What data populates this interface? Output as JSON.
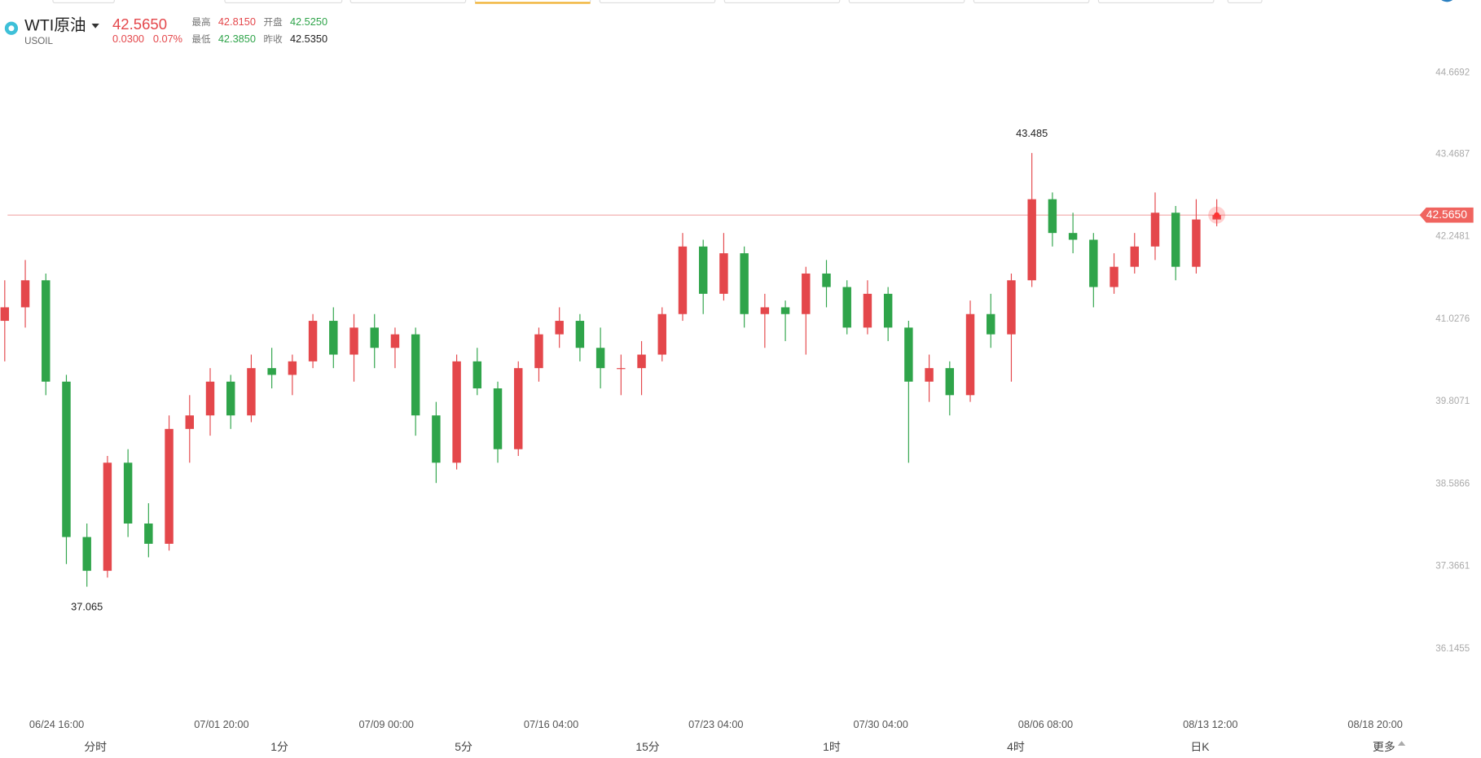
{
  "header": {
    "name": "WTI原油",
    "symbol": "USOIL",
    "price": "42.5650",
    "change": "0.0300",
    "change_pct": "0.07%",
    "stats": [
      {
        "label": "最高",
        "value": "42.8150",
        "tone": "up"
      },
      {
        "label": "开盘",
        "value": "42.5250",
        "tone": "down"
      },
      {
        "label": "最低",
        "value": "42.3850",
        "tone": "down"
      },
      {
        "label": "昨收",
        "value": "42.5350",
        "tone": "flat"
      }
    ]
  },
  "tabs": [
    "分时",
    "1分",
    "5分",
    "15分",
    "1时",
    "4时",
    "日K",
    "更多"
  ],
  "chart_data": {
    "type": "candlestick",
    "up_color": "#e4474b",
    "down_color": "#2fa44a",
    "open": [
      41.0,
      41.2,
      41.6,
      40.1,
      37.8,
      37.3,
      38.9,
      38.0,
      37.7,
      39.4,
      39.6,
      40.1,
      39.6,
      40.3,
      40.2,
      40.4,
      41.0,
      40.5,
      40.9,
      40.6,
      40.8,
      39.6,
      38.9,
      40.4,
      40.0,
      39.1,
      40.3,
      40.8,
      41.0,
      40.6,
      40.3,
      40.3,
      40.5,
      41.1,
      42.1,
      41.4,
      42.0,
      41.1,
      41.2,
      41.1,
      41.7,
      41.5,
      40.9,
      41.4,
      40.9,
      40.1,
      40.3,
      39.9,
      41.1,
      40.8,
      41.6,
      42.8,
      42.3,
      42.2,
      41.5,
      41.8,
      42.1,
      42.6,
      41.8,
      42.5
    ],
    "high": [
      41.6,
      41.9,
      41.7,
      40.2,
      38.0,
      39.0,
      39.1,
      38.3,
      39.6,
      39.9,
      40.3,
      40.2,
      40.5,
      40.6,
      40.5,
      41.1,
      41.2,
      41.1,
      41.1,
      40.9,
      40.9,
      39.8,
      40.5,
      40.6,
      40.1,
      40.4,
      40.9,
      41.2,
      41.1,
      40.9,
      40.5,
      40.7,
      41.2,
      42.3,
      42.2,
      42.3,
      42.1,
      41.4,
      41.3,
      41.8,
      41.9,
      41.6,
      41.6,
      41.5,
      41.0,
      40.5,
      40.4,
      41.3,
      41.4,
      41.7,
      43.485,
      42.9,
      42.6,
      42.3,
      42.0,
      42.3,
      42.9,
      42.7,
      42.8,
      42.8
    ],
    "low": [
      40.4,
      40.9,
      39.9,
      37.4,
      37.065,
      37.2,
      37.8,
      37.5,
      37.6,
      38.9,
      39.3,
      39.4,
      39.5,
      40.0,
      39.9,
      40.3,
      40.3,
      40.1,
      40.3,
      40.3,
      39.3,
      38.6,
      38.8,
      39.9,
      38.9,
      39.0,
      40.1,
      40.6,
      40.4,
      40.0,
      39.9,
      39.9,
      40.4,
      41.0,
      41.1,
      41.3,
      40.9,
      40.6,
      40.7,
      40.5,
      41.2,
      40.8,
      40.8,
      40.7,
      38.9,
      39.8,
      39.6,
      39.8,
      40.6,
      40.1,
      41.5,
      42.1,
      42.0,
      41.2,
      41.4,
      41.7,
      41.9,
      41.6,
      41.7,
      42.4
    ],
    "close": [
      41.2,
      41.6,
      40.1,
      37.8,
      37.3,
      38.9,
      38.0,
      37.7,
      39.4,
      39.6,
      40.1,
      39.6,
      40.3,
      40.2,
      40.4,
      41.0,
      40.5,
      40.9,
      40.6,
      40.8,
      39.6,
      38.9,
      40.4,
      40.0,
      39.1,
      40.3,
      40.8,
      41.0,
      40.6,
      40.3,
      40.3,
      40.5,
      41.1,
      42.1,
      41.4,
      42.0,
      41.1,
      41.2,
      41.1,
      41.7,
      41.5,
      40.9,
      41.4,
      40.9,
      40.1,
      40.3,
      39.9,
      41.1,
      40.8,
      41.6,
      42.8,
      42.3,
      42.2,
      41.5,
      41.8,
      42.1,
      42.6,
      41.8,
      42.5,
      42.565
    ],
    "ylim": [
      35.2,
      45.05
    ],
    "yticks": [
      44.6692,
      43.4687,
      42.2481,
      41.0276,
      39.8071,
      38.5866,
      37.3661,
      36.1455
    ],
    "x_labels": [
      "06/24 16:00",
      "07/01 20:00",
      "07/09 00:00",
      "07/16 04:00",
      "07/23 04:00",
      "07/30 04:00",
      "08/06 08:00",
      "08/13 12:00",
      "08/18 20:00"
    ],
    "last_price": {
      "value": 42.565,
      "label": "42.5650"
    },
    "max_label_index": 50,
    "min_label_index": 4
  }
}
